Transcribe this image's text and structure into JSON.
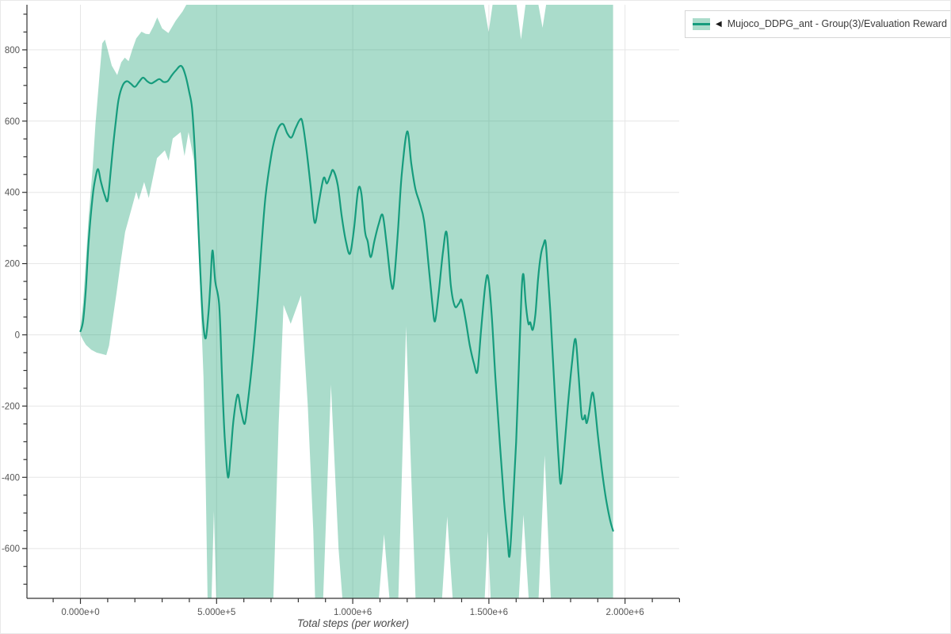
{
  "page": {
    "background": "#ffffff",
    "frame_color": "#e9e9e9"
  },
  "legend": {
    "collapse_icon": "◀",
    "entries": [
      {
        "label": "Mujoco_DDPG_ant - Group(3)/Evaluation Reward",
        "line_color": "#169c7d",
        "band_color": "rgba(20,158,110,0.36)"
      }
    ]
  },
  "chart_data": {
    "type": "line",
    "title": "",
    "xlabel": "Total steps (per worker)",
    "ylabel": "",
    "x_unit": "steps_x1000",
    "xlim_k": [
      -198,
      2190
    ],
    "ylim": [
      -738,
      922
    ],
    "grid": true,
    "legend_position": "top-right",
    "x_major_ticks_k": [
      0,
      500,
      1000,
      1500,
      2000
    ],
    "x_tick_labels": [
      "0.000e+0",
      "5.000e+5",
      "1.000e+6",
      "1.500e+6",
      "2.000e+6"
    ],
    "x_minor_ticks_k": {
      "start": -100,
      "end": 2200,
      "step": 100
    },
    "y_major_ticks": [
      -600,
      -400,
      -200,
      0,
      200,
      400,
      600,
      800
    ],
    "y_tick_labels": [
      "-600",
      "-400",
      "-200",
      "0",
      "200",
      "400",
      "600",
      "800"
    ],
    "y_minor_ticks": {
      "start": -700,
      "end": 900,
      "step": 50
    },
    "colors": {
      "line": "#169c7d",
      "band": "rgba(20,158,110,0.36)",
      "grid": "#e6e6e6",
      "axis": "#333333",
      "tick_label": "#555555",
      "axis_title": "#4a4a4a"
    },
    "series": [
      {
        "name": "Mujoco_DDPG_ant - Group(3)/Evaluation Reward",
        "mean": [
          [
            0,
            10
          ],
          [
            10,
            40
          ],
          [
            20,
            130
          ],
          [
            30,
            260
          ],
          [
            45,
            390
          ],
          [
            55,
            440
          ],
          [
            65,
            465
          ],
          [
            75,
            430
          ],
          [
            90,
            390
          ],
          [
            100,
            378
          ],
          [
            110,
            450
          ],
          [
            120,
            530
          ],
          [
            130,
            600
          ],
          [
            140,
            660
          ],
          [
            155,
            700
          ],
          [
            170,
            712
          ],
          [
            185,
            705
          ],
          [
            200,
            696
          ],
          [
            215,
            710
          ],
          [
            230,
            722
          ],
          [
            245,
            712
          ],
          [
            260,
            706
          ],
          [
            275,
            712
          ],
          [
            290,
            718
          ],
          [
            305,
            710
          ],
          [
            320,
            712
          ],
          [
            335,
            728
          ],
          [
            350,
            742
          ],
          [
            370,
            755
          ],
          [
            385,
            730
          ],
          [
            400,
            680
          ],
          [
            410,
            635
          ],
          [
            420,
            520
          ],
          [
            430,
            360
          ],
          [
            440,
            180
          ],
          [
            450,
            40
          ],
          [
            460,
            -10
          ],
          [
            470,
            60
          ],
          [
            477,
            140
          ],
          [
            485,
            237
          ],
          [
            495,
            150
          ],
          [
            510,
            80
          ],
          [
            520,
            -120
          ],
          [
            530,
            -290
          ],
          [
            542,
            -400
          ],
          [
            552,
            -330
          ],
          [
            562,
            -240
          ],
          [
            577,
            -168
          ],
          [
            590,
            -215
          ],
          [
            603,
            -250
          ],
          [
            613,
            -200
          ],
          [
            625,
            -120
          ],
          [
            638,
            -20
          ],
          [
            652,
            110
          ],
          [
            666,
            260
          ],
          [
            680,
            390
          ],
          [
            700,
            500
          ],
          [
            715,
            555
          ],
          [
            730,
            585
          ],
          [
            745,
            591
          ],
          [
            760,
            565
          ],
          [
            775,
            554
          ],
          [
            790,
            580
          ],
          [
            805,
            603
          ],
          [
            815,
            598
          ],
          [
            830,
            520
          ],
          [
            845,
            420
          ],
          [
            860,
            315
          ],
          [
            875,
            370
          ],
          [
            893,
            440
          ],
          [
            905,
            425
          ],
          [
            918,
            448
          ],
          [
            928,
            462
          ],
          [
            945,
            420
          ],
          [
            960,
            330
          ],
          [
            975,
            262
          ],
          [
            990,
            228
          ],
          [
            1005,
            300
          ],
          [
            1020,
            408
          ],
          [
            1032,
            395
          ],
          [
            1045,
            290
          ],
          [
            1055,
            262
          ],
          [
            1066,
            218
          ],
          [
            1080,
            265
          ],
          [
            1095,
            310
          ],
          [
            1110,
            336
          ],
          [
            1125,
            250
          ],
          [
            1140,
            150
          ],
          [
            1150,
            140
          ],
          [
            1165,
            280
          ],
          [
            1180,
            450
          ],
          [
            1200,
            571
          ],
          [
            1215,
            480
          ],
          [
            1230,
            410
          ],
          [
            1245,
            372
          ],
          [
            1262,
            320
          ],
          [
            1278,
            200
          ],
          [
            1292,
            90
          ],
          [
            1302,
            38
          ],
          [
            1316,
            120
          ],
          [
            1331,
            230
          ],
          [
            1345,
            287
          ],
          [
            1360,
            140
          ],
          [
            1375,
            80
          ],
          [
            1390,
            88
          ],
          [
            1400,
            97
          ],
          [
            1415,
            40
          ],
          [
            1430,
            -30
          ],
          [
            1445,
            -80
          ],
          [
            1458,
            -102
          ],
          [
            1472,
            20
          ],
          [
            1487,
            140
          ],
          [
            1497,
            162
          ],
          [
            1510,
            60
          ],
          [
            1524,
            -120
          ],
          [
            1540,
            -300
          ],
          [
            1555,
            -460
          ],
          [
            1568,
            -570
          ],
          [
            1576,
            -620
          ],
          [
            1588,
            -480
          ],
          [
            1600,
            -300
          ],
          [
            1610,
            -90
          ],
          [
            1620,
            120
          ],
          [
            1627,
            170
          ],
          [
            1635,
            90
          ],
          [
            1645,
            32
          ],
          [
            1652,
            35
          ],
          [
            1661,
            14
          ],
          [
            1671,
            60
          ],
          [
            1681,
            160
          ],
          [
            1691,
            225
          ],
          [
            1700,
            252
          ],
          [
            1708,
            261
          ],
          [
            1716,
            180
          ],
          [
            1726,
            60
          ],
          [
            1736,
            -80
          ],
          [
            1746,
            -220
          ],
          [
            1756,
            -350
          ],
          [
            1764,
            -418
          ],
          [
            1776,
            -330
          ],
          [
            1790,
            -200
          ],
          [
            1805,
            -80
          ],
          [
            1818,
            -12
          ],
          [
            1830,
            -120
          ],
          [
            1840,
            -225
          ],
          [
            1848,
            -236
          ],
          [
            1853,
            -226
          ],
          [
            1859,
            -248
          ],
          [
            1868,
            -218
          ],
          [
            1878,
            -166
          ],
          [
            1886,
            -178
          ],
          [
            1900,
            -280
          ],
          [
            1915,
            -380
          ],
          [
            1930,
            -460
          ],
          [
            1945,
            -520
          ],
          [
            1956,
            -550
          ]
        ],
        "band_upper": [
          [
            0,
            22
          ],
          [
            10,
            90
          ],
          [
            20,
            210
          ],
          [
            30,
            330
          ],
          [
            45,
            470
          ],
          [
            55,
            590
          ],
          [
            70,
            730
          ],
          [
            80,
            818
          ],
          [
            90,
            829
          ],
          [
            100,
            800
          ],
          [
            115,
            756
          ],
          [
            135,
            729
          ],
          [
            150,
            765
          ],
          [
            163,
            778
          ],
          [
            177,
            768
          ],
          [
            190,
            800
          ],
          [
            205,
            832
          ],
          [
            224,
            851
          ],
          [
            240,
            845
          ],
          [
            253,
            844
          ],
          [
            268,
            866
          ],
          [
            282,
            891
          ],
          [
            300,
            860
          ],
          [
            323,
            847
          ],
          [
            350,
            882
          ],
          [
            375,
            908
          ],
          [
            395,
            935
          ],
          [
            1480,
            935
          ],
          [
            1499,
            850
          ],
          [
            1515,
            935
          ],
          [
            1600,
            935
          ],
          [
            1618,
            829
          ],
          [
            1636,
            935
          ],
          [
            1680,
            935
          ],
          [
            1697,
            862
          ],
          [
            1712,
            935
          ],
          [
            1956,
            935
          ]
        ],
        "band_lower": [
          [
            0,
            0
          ],
          [
            10,
            -15
          ],
          [
            20,
            -28
          ],
          [
            40,
            -42
          ],
          [
            60,
            -50
          ],
          [
            80,
            -54
          ],
          [
            95,
            -57
          ],
          [
            105,
            -30
          ],
          [
            118,
            40
          ],
          [
            133,
            120
          ],
          [
            147,
            200
          ],
          [
            164,
            289
          ],
          [
            185,
            347
          ],
          [
            205,
            402
          ],
          [
            214,
            378
          ],
          [
            234,
            429
          ],
          [
            251,
            384
          ],
          [
            281,
            496
          ],
          [
            310,
            518
          ],
          [
            324,
            489
          ],
          [
            339,
            551
          ],
          [
            368,
            569
          ],
          [
            382,
            502
          ],
          [
            397,
            569
          ],
          [
            417,
            489
          ],
          [
            432,
            290
          ],
          [
            442,
            80
          ],
          [
            452,
            -120
          ],
          [
            460,
            -420
          ],
          [
            467,
            -750
          ],
          [
            481,
            -750
          ],
          [
            490,
            -495
          ],
          [
            499,
            -750
          ],
          [
            708,
            -750
          ],
          [
            728,
            -250
          ],
          [
            746,
            84
          ],
          [
            772,
            31
          ],
          [
            810,
            111
          ],
          [
            835,
            -200
          ],
          [
            855,
            -550
          ],
          [
            862,
            -750
          ],
          [
            891,
            -750
          ],
          [
            920,
            -140
          ],
          [
            948,
            -600
          ],
          [
            963,
            -750
          ],
          [
            1095,
            -750
          ],
          [
            1115,
            -560
          ],
          [
            1136,
            -750
          ],
          [
            1167,
            -750
          ],
          [
            1196,
            24
          ],
          [
            1231,
            -750
          ],
          [
            1327,
            -750
          ],
          [
            1347,
            -510
          ],
          [
            1368,
            -750
          ],
          [
            1484,
            -750
          ],
          [
            1496,
            -552
          ],
          [
            1507,
            -750
          ],
          [
            1609,
            -750
          ],
          [
            1627,
            -505
          ],
          [
            1647,
            -750
          ],
          [
            1682,
            -750
          ],
          [
            1705,
            -338
          ],
          [
            1728,
            -750
          ],
          [
            1956,
            -750
          ]
        ]
      }
    ]
  }
}
